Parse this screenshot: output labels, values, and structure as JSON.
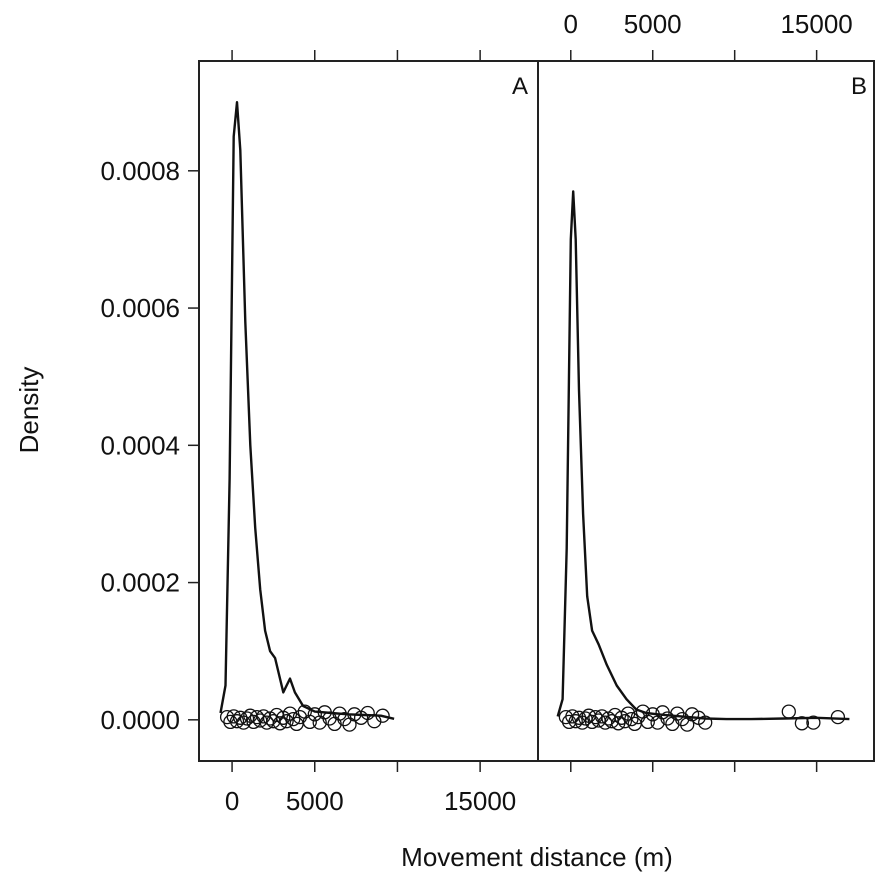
{
  "chart_data": {
    "type": "line",
    "xlabel": "Movement distance (m)",
    "ylabel": "Density",
    "ylim": [
      -6e-05,
      0.00096
    ],
    "xlim": [
      -2000,
      18500
    ],
    "x_ticks": [
      0,
      5000,
      10000,
      15000
    ],
    "x_tick_labels": [
      "0",
      "5000",
      "",
      "15000"
    ],
    "y_ticks": [
      0,
      0.0002,
      0.0004,
      0.0006,
      0.0008
    ],
    "y_tick_labels": [
      "0.0000",
      "0.0002",
      "0.0004",
      "0.0006",
      "0.0008"
    ],
    "grid": false,
    "panels": [
      {
        "label": "A",
        "density_curve": {
          "x": [
            -700,
            -400,
            -150,
            100,
            300,
            500,
            800,
            1100,
            1400,
            1700,
            2000,
            2300,
            2600,
            2900,
            3100,
            3300,
            3500,
            3800,
            4300,
            5000,
            6000,
            7000,
            8000,
            9000,
            9800
          ],
          "y": [
            1e-05,
            5e-05,
            0.00035,
            0.00085,
            0.0009,
            0.00083,
            0.00058,
            0.0004,
            0.00028,
            0.00019,
            0.00013,
            0.0001,
            9e-05,
            6e-05,
            4e-05,
            5e-05,
            6e-05,
            4e-05,
            2e-05,
            1.2e-05,
            1e-05,
            8e-06,
            7e-06,
            6e-06,
            1.5e-06
          ]
        },
        "observations": [
          {
            "x": -300,
            "y": 4e-06
          },
          {
            "x": -100,
            "y": -3e-06
          },
          {
            "x": 100,
            "y": 5e-06
          },
          {
            "x": 300,
            "y": -2e-06
          },
          {
            "x": 500,
            "y": 3e-06
          },
          {
            "x": 700,
            "y": -4e-06
          },
          {
            "x": 900,
            "y": 2e-06
          },
          {
            "x": 1100,
            "y": 6e-06
          },
          {
            "x": 1300,
            "y": -3e-06
          },
          {
            "x": 1500,
            "y": 4e-06
          },
          {
            "x": 1700,
            "y": -1e-06
          },
          {
            "x": 1900,
            "y": 5e-06
          },
          {
            "x": 2100,
            "y": -4e-06
          },
          {
            "x": 2300,
            "y": 2e-06
          },
          {
            "x": 2500,
            "y": -2e-06
          },
          {
            "x": 2700,
            "y": 7e-06
          },
          {
            "x": 2900,
            "y": -5e-06
          },
          {
            "x": 3100,
            "y": 3e-06
          },
          {
            "x": 3300,
            "y": -2e-06
          },
          {
            "x": 3500,
            "y": 9e-06
          },
          {
            "x": 3700,
            "y": 1e-06
          },
          {
            "x": 3900,
            "y": -6e-06
          },
          {
            "x": 4100,
            "y": 4e-06
          },
          {
            "x": 4400,
            "y": 1.2e-05
          },
          {
            "x": 4700,
            "y": -3e-06
          },
          {
            "x": 5000,
            "y": 8e-06
          },
          {
            "x": 5300,
            "y": -4e-06
          },
          {
            "x": 5600,
            "y": 1.1e-05
          },
          {
            "x": 5900,
            "y": 2e-06
          },
          {
            "x": 6200,
            "y": -6e-06
          },
          {
            "x": 6500,
            "y": 9e-06
          },
          {
            "x": 6800,
            "y": 1e-06
          },
          {
            "x": 7100,
            "y": -7e-06
          },
          {
            "x": 7400,
            "y": 8e-06
          },
          {
            "x": 7800,
            "y": 3e-06
          },
          {
            "x": 8200,
            "y": 1e-05
          },
          {
            "x": 8600,
            "y": -2e-06
          },
          {
            "x": 9100,
            "y": 6e-06
          }
        ]
      },
      {
        "label": "B",
        "density_curve": {
          "x": [
            -800,
            -500,
            -250,
            0,
            150,
            300,
            500,
            750,
            1000,
            1300,
            1700,
            2200,
            2800,
            3400,
            4000,
            4600,
            5300,
            6200,
            7200,
            8200,
            9500,
            11000,
            13000,
            15000,
            17000
          ],
          "y": [
            5e-06,
            3e-05,
            0.00025,
            0.0007,
            0.00077,
            0.0007,
            0.00048,
            0.0003,
            0.00018,
            0.00013,
            0.00011,
            8e-05,
            5e-05,
            3e-05,
            1.5e-05,
            1e-05,
            8e-06,
            6e-06,
            4e-06,
            2e-06,
            1e-06,
            1e-06,
            2e-06,
            3e-06,
            1e-06
          ]
        },
        "observations": [
          {
            "x": -300,
            "y": 4e-06
          },
          {
            "x": -100,
            "y": -3e-06
          },
          {
            "x": 100,
            "y": 5e-06
          },
          {
            "x": 300,
            "y": -2e-06
          },
          {
            "x": 500,
            "y": 3e-06
          },
          {
            "x": 700,
            "y": -4e-06
          },
          {
            "x": 900,
            "y": 2e-06
          },
          {
            "x": 1100,
            "y": 6e-06
          },
          {
            "x": 1300,
            "y": -3e-06
          },
          {
            "x": 1500,
            "y": 4e-06
          },
          {
            "x": 1700,
            "y": -1e-06
          },
          {
            "x": 1900,
            "y": 5e-06
          },
          {
            "x": 2100,
            "y": -4e-06
          },
          {
            "x": 2300,
            "y": 2e-06
          },
          {
            "x": 2500,
            "y": -2e-06
          },
          {
            "x": 2700,
            "y": 7e-06
          },
          {
            "x": 2900,
            "y": -5e-06
          },
          {
            "x": 3100,
            "y": 3e-06
          },
          {
            "x": 3300,
            "y": -2e-06
          },
          {
            "x": 3500,
            "y": 9e-06
          },
          {
            "x": 3700,
            "y": 1e-06
          },
          {
            "x": 3900,
            "y": -6e-06
          },
          {
            "x": 4100,
            "y": 4e-06
          },
          {
            "x": 4400,
            "y": 1.2e-05
          },
          {
            "x": 4700,
            "y": -3e-06
          },
          {
            "x": 5000,
            "y": 8e-06
          },
          {
            "x": 5300,
            "y": -4e-06
          },
          {
            "x": 5600,
            "y": 1.1e-05
          },
          {
            "x": 5900,
            "y": 2e-06
          },
          {
            "x": 6200,
            "y": -6e-06
          },
          {
            "x": 6500,
            "y": 9e-06
          },
          {
            "x": 6800,
            "y": 1e-06
          },
          {
            "x": 7100,
            "y": -7e-06
          },
          {
            "x": 7400,
            "y": 8e-06
          },
          {
            "x": 7800,
            "y": 3e-06
          },
          {
            "x": 8200,
            "y": -4e-06
          },
          {
            "x": 13300,
            "y": 1.2e-05
          },
          {
            "x": 14100,
            "y": -5e-06
          },
          {
            "x": 14800,
            "y": -4e-06
          },
          {
            "x": 16300,
            "y": 4e-06
          }
        ]
      }
    ]
  }
}
